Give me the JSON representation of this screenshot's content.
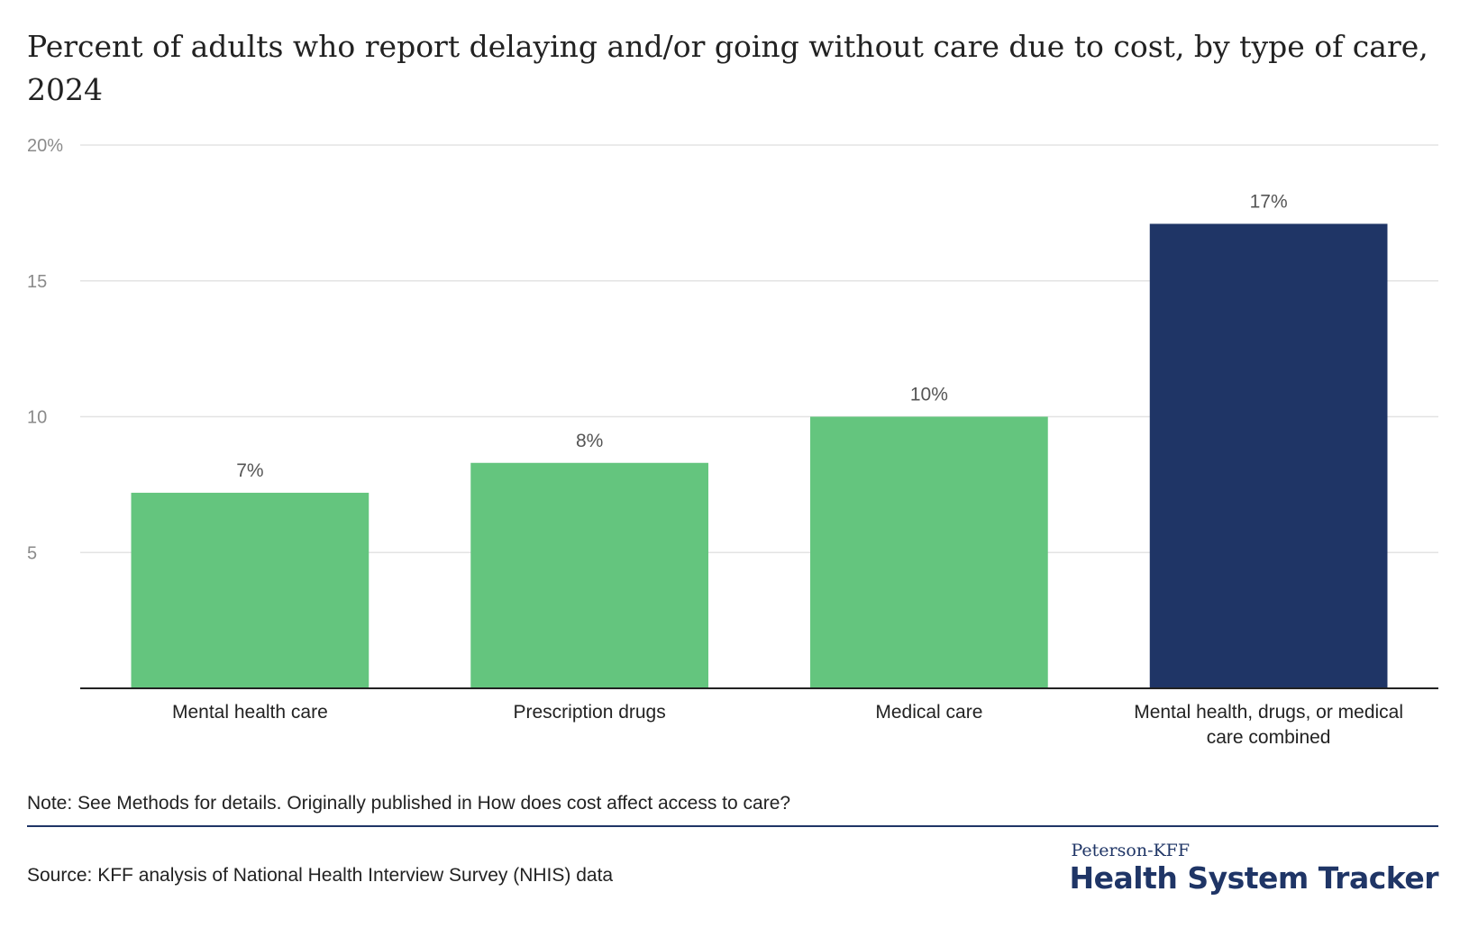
{
  "chart_data": {
    "type": "bar",
    "title": "Percent of adults who report delaying and/or going without care due to cost, by type of care, 2024",
    "categories": [
      [
        "Mental health care"
      ],
      [
        "Prescription drugs"
      ],
      [
        "Medical care"
      ],
      [
        "Mental health, drugs, or medical",
        "care combined"
      ]
    ],
    "values": [
      7.2,
      8.3,
      10.0,
      17.1
    ],
    "data_labels": [
      "7%",
      "8%",
      "10%",
      "17%"
    ],
    "bar_colors": [
      "#64c57e",
      "#64c57e",
      "#64c57e",
      "#1f3566"
    ],
    "y_ticks": [
      {
        "value": 20,
        "label": "20%"
      },
      {
        "value": 15,
        "label": "15"
      },
      {
        "value": 10,
        "label": "10"
      },
      {
        "value": 5,
        "label": "5"
      }
    ],
    "ylim": [
      0,
      20
    ],
    "xlabel": "",
    "ylabel": "",
    "grid": true,
    "legend": "none"
  },
  "footer": {
    "note": "Note: See Methods for details. Originally published in How does cost affect access to care?",
    "source": "Source: KFF analysis of National Health Interview Survey (NHIS) data",
    "logo_top": "Peterson-KFF",
    "logo_main": "Health System Tracker"
  },
  "colors": {
    "accent_green": "#64c57e",
    "accent_navy": "#1f3566",
    "grid": "#e3e3e3",
    "axis_text": "#8a8a8a"
  }
}
